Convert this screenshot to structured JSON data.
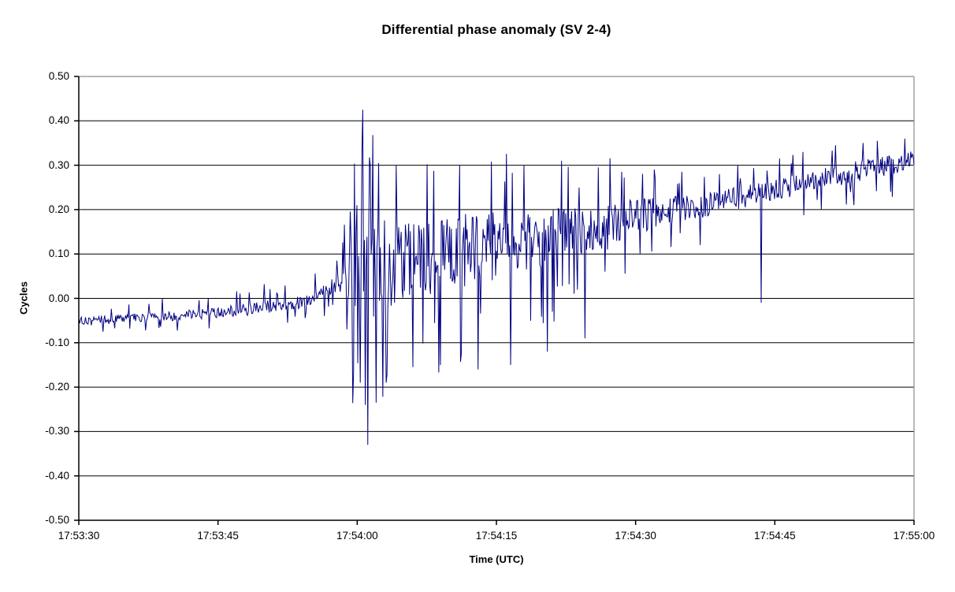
{
  "page": {
    "background": "#ffffff"
  },
  "chart_data": {
    "type": "line",
    "title": "Differential phase anomaly (SV 2-4)",
    "xlabel": "Time (UTC)",
    "ylabel": "Cycles",
    "legend": "none",
    "grid": "horizontal-major",
    "xlim_seconds": [
      0,
      90
    ],
    "ylim": [
      -0.5,
      0.5
    ],
    "x_tick_labels": [
      "17:53:30",
      "17:53:45",
      "17:54:00",
      "17:54:15",
      "17:54:30",
      "17:54:45",
      "17:55:00"
    ],
    "x_tick_seconds": [
      0,
      15,
      30,
      45,
      60,
      75,
      90
    ],
    "y_tick_labels": [
      "0.50",
      "0.40",
      "0.30",
      "0.20",
      "0.10",
      "0.00",
      "-0.10",
      "-0.20",
      "-0.30",
      "-0.40",
      "-0.50"
    ],
    "y_tick_values": [
      0.5,
      0.4,
      0.3,
      0.2,
      0.1,
      0,
      -0.1,
      -0.2,
      -0.3,
      -0.4,
      -0.5
    ],
    "colors": {
      "line": "#000080",
      "gridline": "#000000",
      "axis": "#000000",
      "plot_border": "#8c8c8c",
      "text": "#000000",
      "background": "#ffffff"
    },
    "series": {
      "name": "differential-phase-anomaly-sv2-4",
      "description": "Noisy differential carrier-phase trace: slow ramp from -0.05 to +0.32 cycles over 90 s, violent oscillation burst beginning at 17:53:59 (peaks +0.425 / -0.33 near 17:54:00) that decays until ~17:54:25, then a tightening noisy band with an isolated dropout spike to ~0.00 at ~17:54:43.",
      "synthesis": {
        "dt": 0.09,
        "seed": 20,
        "band_factor": 0.5,
        "spike_prob": 0.07,
        "spike_min": 0.85,
        "spike_max": 1.6,
        "envelope": [
          [
            0,
            -0.052,
            0.02
          ],
          [
            10,
            -0.04,
            0.022
          ],
          [
            18,
            -0.026,
            0.026
          ],
          [
            24,
            -0.008,
            0.03
          ],
          [
            27,
            0.022,
            0.036
          ],
          [
            28.3,
            0.04,
            0.05
          ],
          [
            29,
            0.03,
            0.11
          ],
          [
            29.8,
            0.06,
            0.22
          ],
          [
            31,
            0.065,
            0.28
          ],
          [
            32.5,
            0.075,
            0.22
          ],
          [
            35,
            0.09,
            0.19
          ],
          [
            40,
            0.105,
            0.17
          ],
          [
            45,
            0.12,
            0.155
          ],
          [
            50,
            0.135,
            0.135
          ],
          [
            55,
            0.155,
            0.11
          ],
          [
            60,
            0.185,
            0.08
          ],
          [
            64,
            0.2,
            0.062
          ],
          [
            68,
            0.212,
            0.055
          ],
          [
            72,
            0.23,
            0.05
          ],
          [
            76,
            0.248,
            0.048
          ],
          [
            80,
            0.268,
            0.05
          ],
          [
            84,
            0.288,
            0.048
          ],
          [
            88,
            0.302,
            0.045
          ],
          [
            90,
            0.315,
            0.04
          ]
        ],
        "spikes": [
          [
            2.6,
            -0.075
          ],
          [
            5.5,
            -0.068
          ],
          [
            9.0,
            0.0
          ],
          [
            13.0,
            -0.004
          ],
          [
            17.0,
            0.016
          ],
          [
            20.0,
            0.032
          ],
          [
            22.5,
            -0.055
          ],
          [
            25.5,
            0.056
          ],
          [
            26.5,
            -0.04
          ],
          [
            27.8,
            0.085
          ],
          [
            28.6,
            0.166
          ],
          [
            28.9,
            -0.07
          ],
          [
            29.3,
            0.13
          ],
          [
            29.6,
            -0.165
          ],
          [
            30.0,
            0.21
          ],
          [
            30.3,
            -0.19
          ],
          [
            30.62,
            0.425
          ],
          [
            30.9,
            -0.24
          ],
          [
            31.13,
            -0.33
          ],
          [
            31.45,
            0.3
          ],
          [
            31.66,
            0.368
          ],
          [
            32.08,
            -0.235
          ],
          [
            32.35,
            0.305
          ],
          [
            33.1,
            -0.19
          ],
          [
            34.2,
            0.3
          ],
          [
            36.0,
            -0.155
          ],
          [
            37.5,
            0.302
          ],
          [
            39.0,
            -0.15
          ],
          [
            41.0,
            0.3
          ],
          [
            43.0,
            -0.16
          ],
          [
            44.5,
            0.308
          ],
          [
            46.5,
            -0.15
          ],
          [
            48.0,
            0.3
          ],
          [
            50.5,
            -0.12
          ],
          [
            52.0,
            0.31
          ],
          [
            54.5,
            -0.09
          ],
          [
            56.0,
            0.295
          ],
          [
            57.0,
            0.11
          ],
          [
            58.5,
            0.285
          ],
          [
            60.5,
            0.1
          ],
          [
            62.0,
            0.29
          ],
          [
            65.0,
            0.285
          ],
          [
            67.0,
            0.12
          ],
          [
            69.0,
            0.28
          ],
          [
            71.0,
            0.3
          ],
          [
            73.5,
            -0.01
          ],
          [
            75.5,
            0.315
          ],
          [
            78.0,
            0.33
          ],
          [
            80.0,
            0.2
          ],
          [
            81.5,
            0.345
          ],
          [
            83.5,
            0.21
          ],
          [
            84.5,
            0.35
          ],
          [
            86.0,
            0.355
          ],
          [
            87.5,
            0.24
          ],
          [
            89.0,
            0.36
          ],
          [
            89.8,
            0.325
          ]
        ]
      }
    }
  }
}
